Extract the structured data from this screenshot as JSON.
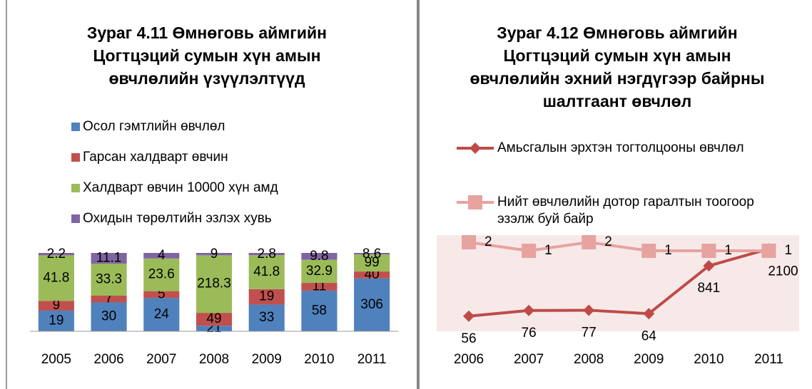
{
  "chart_data": [
    {
      "type": "bar",
      "stacked": "percent",
      "title": "Зураг 4.11 Өмнөговь аймгийн Цогтцэций сумын хүн амын өвчлөлийн үзүүлэлтүүд",
      "categories": [
        "2005",
        "2006",
        "2007",
        "2008",
        "2009",
        "2010",
        "2011"
      ],
      "series": [
        {
          "name": "Осол гэмтлийн өвчлөл",
          "color": "#4f81bd",
          "values": [
            19,
            30,
            24,
            21,
            33,
            58,
            306
          ]
        },
        {
          "name": "Гарсан халдварт өвчин",
          "color": "#c0504d",
          "values": [
            9,
            7,
            5,
            49,
            19,
            11,
            40
          ]
        },
        {
          "name": "Халдварт өвчин 10000 хүн амд",
          "color": "#9bbb59",
          "values": [
            41.8,
            33.3,
            23.6,
            218.3,
            41.8,
            32.9,
            99
          ]
        },
        {
          "name": "Охидын төрөлтийн эзлэх хувь",
          "color": "#8064a2",
          "values": [
            2.2,
            11.1,
            4,
            9,
            2.8,
            9.8,
            8.6
          ]
        }
      ]
    },
    {
      "type": "line",
      "title": "Зураг 4.12 Өмнөговь аймгийн Цогтцэций сумын хүн амын өвчлөлийн эхний нэгдүгээр байрны шалтгаант өвчлөл",
      "categories": [
        "2006",
        "2007",
        "2008",
        "2009",
        "2010",
        "2011"
      ],
      "ylim": [
        30,
        3000
      ],
      "log_scale": true,
      "y2lim": [
        -8,
        2
      ],
      "series": [
        {
          "name": "Амьсгалын эрхтэн тогтолцооны өвчлөл",
          "color": "#be4b48",
          "marker": "diamond",
          "values": [
            56,
            76,
            77,
            64,
            841,
            2100
          ]
        },
        {
          "name": "Нийт өвчлөлийн дотор гаралтын тоогоор эзэлж буй байр",
          "color": "#e6a3a0",
          "marker": "square",
          "axis": "y2",
          "values": [
            2,
            1,
            2,
            1,
            1,
            1
          ]
        }
      ]
    }
  ]
}
